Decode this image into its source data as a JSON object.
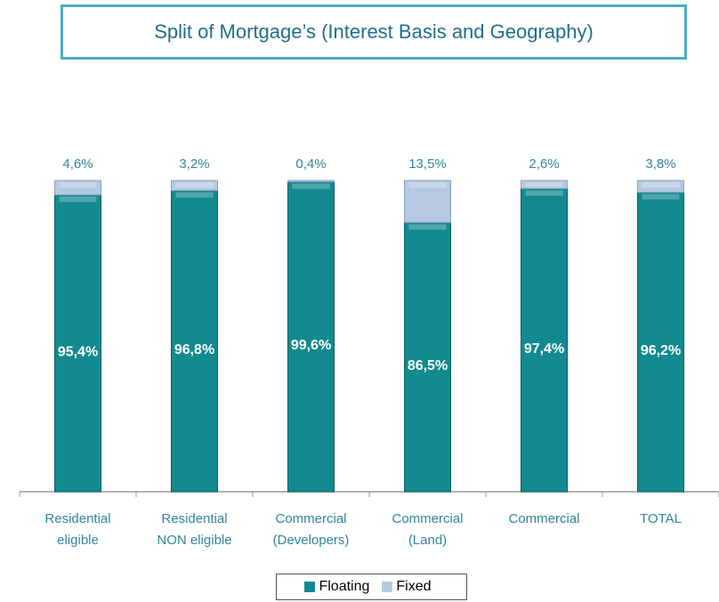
{
  "chart_data": {
    "type": "stacked-bar",
    "title": "Split of Mortgage’s   (Interest Basis and Geography)",
    "categories": [
      "Residential\neligible",
      "Residential\nNON eligible",
      "Commercial\n(Developers)",
      "Commercial\n(Land)",
      "Commercial",
      "TOTAL"
    ],
    "series": [
      {
        "name": "Floating",
        "color": "#138a8f",
        "values": [
          95.4,
          96.8,
          99.6,
          86.5,
          97.4,
          96.2
        ],
        "value_labels": [
          "95,4%",
          "96,8%",
          "99,6%",
          "86,5%",
          "97,4%",
          "96,2%"
        ]
      },
      {
        "name": "Fixed",
        "color": "#b7c9e2",
        "values": [
          4.6,
          3.2,
          0.4,
          13.5,
          2.6,
          3.8
        ],
        "value_labels": [
          "4,6%",
          "3,2%",
          "0,4%",
          "13,5%",
          "2,6%",
          "3,8%"
        ]
      }
    ],
    "ylim": [
      0,
      100
    ],
    "legend": "bottom"
  }
}
